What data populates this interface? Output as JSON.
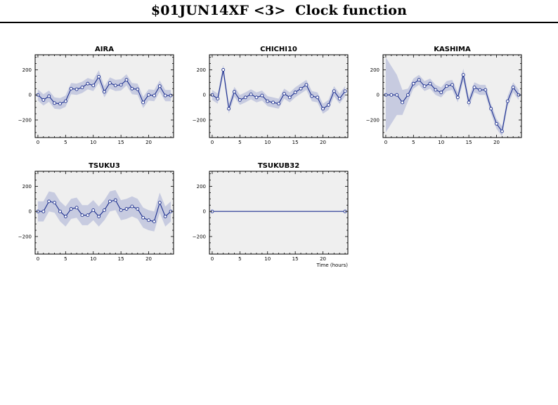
{
  "header": {
    "title": "$01JUN14XF <3>  Clock function"
  },
  "colors": {
    "line": "#1c2f8f",
    "band": "#c7cbe0",
    "plot_bg": "#efefef",
    "frame": "#000000"
  },
  "chart_data": [
    {
      "type": "line",
      "title": "AIRA",
      "xlim": [
        -0.5,
        24.5
      ],
      "ylim": [
        -340,
        320
      ],
      "xticks": [
        0,
        5,
        10,
        15,
        20
      ],
      "yticks": [
        -200,
        0,
        200
      ],
      "xlabel": "",
      "series": [
        {
          "x": [
            0,
            1,
            2,
            3,
            4,
            5,
            6,
            7,
            8,
            9,
            10,
            11,
            12,
            13,
            14,
            15,
            16,
            17,
            18,
            19,
            20,
            21,
            22,
            23,
            24
          ],
          "y": [
            0,
            -40,
            -10,
            -65,
            -70,
            -50,
            50,
            45,
            60,
            90,
            75,
            145,
            25,
            95,
            75,
            80,
            120,
            50,
            45,
            -60,
            0,
            -5,
            70,
            -5,
            -5
          ],
          "err": [
            45,
            45,
            45,
            45,
            45,
            45,
            45,
            45,
            45,
            45,
            45,
            50,
            45,
            45,
            45,
            45,
            45,
            45,
            45,
            45,
            45,
            45,
            45,
            45,
            45
          ]
        }
      ]
    },
    {
      "type": "line",
      "title": "CHICHI10",
      "xlim": [
        -0.5,
        24.5
      ],
      "ylim": [
        -340,
        320
      ],
      "xticks": [
        0,
        5,
        10,
        15,
        20
      ],
      "yticks": [
        -200,
        0,
        200
      ],
      "xlabel": "",
      "series": [
        {
          "x": [
            0,
            1,
            2,
            3,
            4,
            5,
            6,
            7,
            8,
            9,
            10,
            11,
            12,
            13,
            14,
            15,
            16,
            17,
            18,
            19,
            20,
            21,
            22,
            23,
            24
          ],
          "y": [
            0,
            -30,
            200,
            -110,
            25,
            -40,
            -20,
            5,
            -20,
            -5,
            -50,
            -60,
            -70,
            10,
            -20,
            20,
            50,
            80,
            -10,
            -20,
            -110,
            -80,
            30,
            -30,
            30
          ],
          "err": [
            40,
            40,
            40,
            40,
            40,
            40,
            40,
            40,
            40,
            40,
            40,
            40,
            40,
            40,
            40,
            40,
            40,
            40,
            40,
            40,
            40,
            40,
            40,
            40,
            40
          ]
        }
      ]
    },
    {
      "type": "line",
      "title": "KASHIMA",
      "xlim": [
        -0.5,
        24.5
      ],
      "ylim": [
        -340,
        320
      ],
      "xticks": [
        0,
        5,
        10,
        15,
        20
      ],
      "yticks": [
        -200,
        0,
        200
      ],
      "xlabel": "",
      "series": [
        {
          "x": [
            0,
            1,
            2,
            3,
            4,
            5,
            6,
            7,
            8,
            9,
            10,
            11,
            12,
            13,
            14,
            15,
            16,
            17,
            18,
            19,
            20,
            21,
            22,
            23,
            24
          ],
          "y": [
            0,
            0,
            0,
            -60,
            0,
            90,
            120,
            70,
            90,
            40,
            20,
            70,
            80,
            -20,
            160,
            -60,
            60,
            40,
            40,
            -110,
            -230,
            -290,
            -50,
            60,
            0
          ],
          "err": [
            300,
            230,
            160,
            100,
            50,
            40,
            40,
            40,
            40,
            40,
            40,
            40,
            40,
            40,
            50,
            40,
            40,
            40,
            40,
            40,
            40,
            40,
            40,
            40,
            40
          ]
        }
      ]
    },
    {
      "type": "line",
      "title": "TSUKU3",
      "xlim": [
        -0.5,
        24.5
      ],
      "ylim": [
        -340,
        320
      ],
      "xticks": [
        0,
        5,
        10,
        15,
        20
      ],
      "yticks": [
        -200,
        0,
        200
      ],
      "xlabel": "",
      "series": [
        {
          "x": [
            0,
            1,
            2,
            3,
            4,
            5,
            6,
            7,
            8,
            9,
            10,
            11,
            12,
            13,
            14,
            15,
            16,
            17,
            18,
            19,
            20,
            21,
            22,
            23,
            24
          ],
          "y": [
            0,
            0,
            80,
            70,
            0,
            -40,
            20,
            30,
            -30,
            -30,
            10,
            -40,
            10,
            80,
            90,
            10,
            20,
            40,
            20,
            -50,
            -70,
            -80,
            70,
            -40,
            0
          ],
          "err": [
            80,
            80,
            80,
            80,
            80,
            80,
            80,
            80,
            80,
            80,
            80,
            80,
            80,
            80,
            80,
            80,
            80,
            80,
            80,
            80,
            80,
            80,
            80,
            80,
            80
          ]
        }
      ]
    },
    {
      "type": "line",
      "title": "TSUKUB32",
      "xlim": [
        -0.5,
        24.5
      ],
      "ylim": [
        -340,
        320
      ],
      "xticks": [
        0,
        5,
        10,
        15,
        20
      ],
      "yticks": [
        -200,
        0,
        200
      ],
      "xlabel": "Time (hours)",
      "series": [
        {
          "x": [
            0,
            24
          ],
          "y": [
            0,
            0
          ],
          "err": [
            0,
            0
          ]
        }
      ]
    }
  ]
}
